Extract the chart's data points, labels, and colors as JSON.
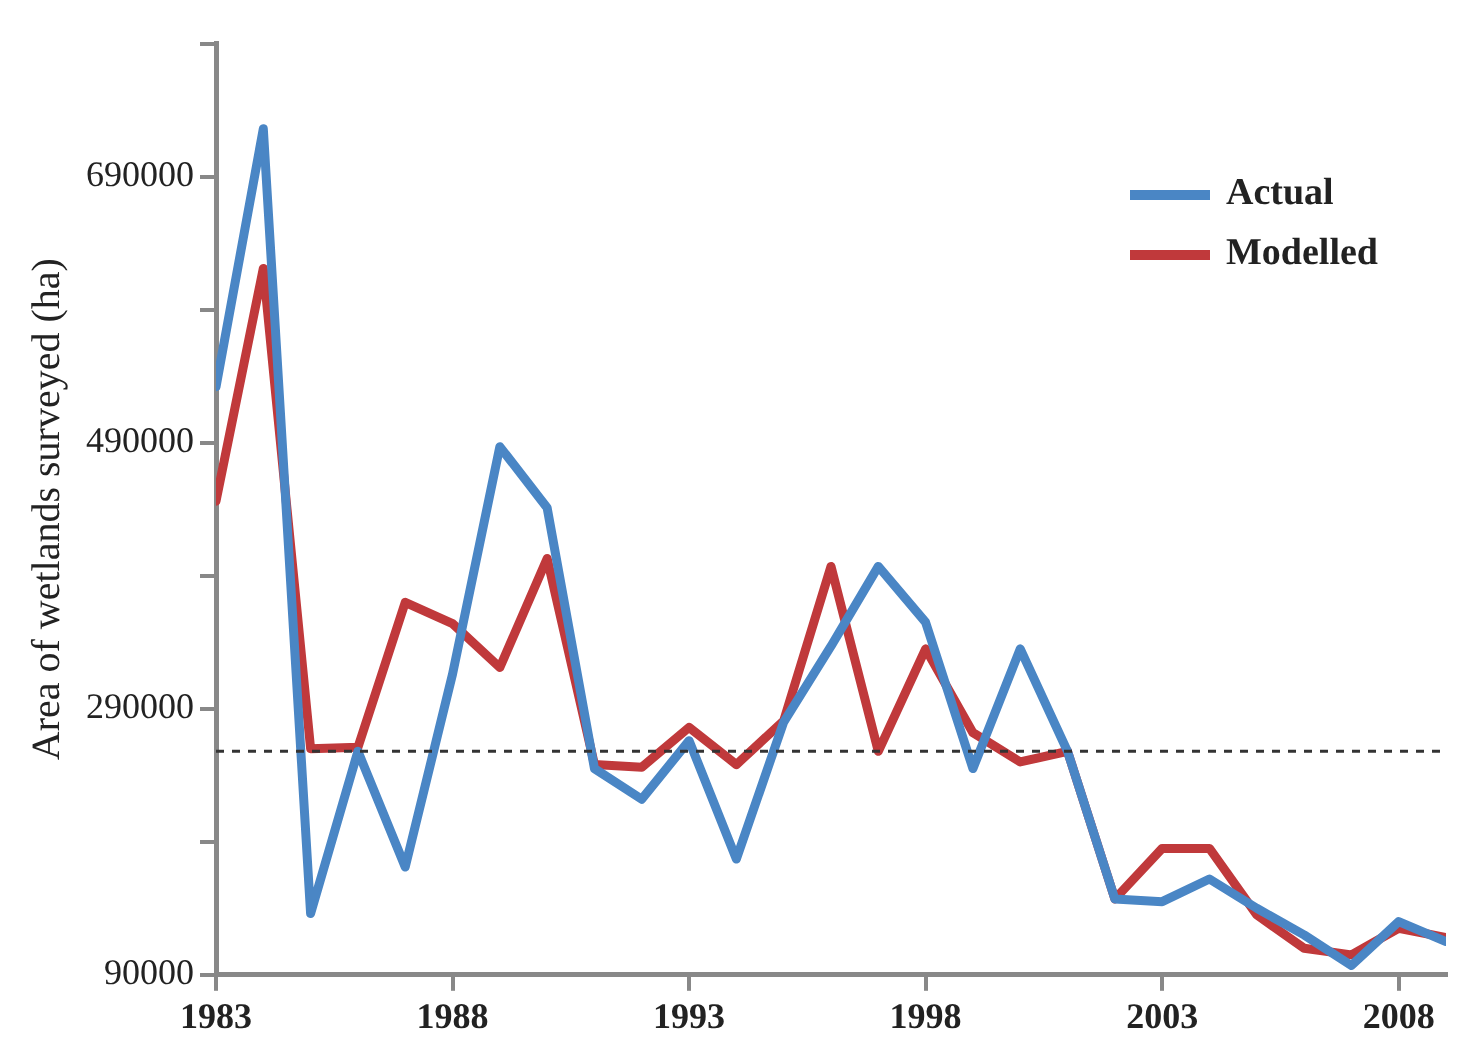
{
  "chart_data": {
    "type": "line",
    "ylabel": "Area of wetlands surveyed (ha)",
    "x": [
      1983,
      1984,
      1985,
      1986,
      1987,
      1988,
      1989,
      1990,
      1991,
      1992,
      1993,
      1994,
      1995,
      1996,
      1997,
      1998,
      1999,
      2000,
      2001,
      2002,
      2003,
      2004,
      2005,
      2006,
      2007,
      2008,
      2009
    ],
    "series": [
      {
        "name": "Actual",
        "color": "#4a86c5",
        "values": [
          532000,
          726000,
          136000,
          258000,
          171000,
          316000,
          487000,
          441000,
          245000,
          222000,
          266000,
          177000,
          280000,
          337000,
          397000,
          355000,
          245000,
          335000,
          258000,
          147000,
          145000,
          162000,
          140000,
          120000,
          97000,
          130000,
          115000
        ]
      },
      {
        "name": "Modelled",
        "color": "#c0393b",
        "values": [
          446000,
          621000,
          260000,
          261000,
          370000,
          354000,
          321000,
          403000,
          248000,
          246000,
          276000,
          248000,
          281000,
          397000,
          258000,
          335000,
          272000,
          250000,
          258000,
          147000,
          185000,
          185000,
          135000,
          110000,
          105000,
          125000,
          118000
        ]
      }
    ],
    "xlim": [
      1983,
      2009
    ],
    "xticks": [
      1983,
      1988,
      1993,
      1998,
      2003,
      2008
    ],
    "ylim": [
      90000,
      790000
    ],
    "yticks": [
      90000,
      {
        "value": 190000,
        "label": null
      },
      290000,
      {
        "value": 390000,
        "label": null
      },
      490000,
      {
        "value": 590000,
        "label": null
      },
      690000,
      {
        "value": 790000,
        "label": null
      }
    ],
    "ref_lines": [
      {
        "axis": "y",
        "value": 258000,
        "color": "#333333",
        "line_style": "dashed"
      }
    ],
    "legend": "top right",
    "grid": false,
    "marker": "none",
    "line_style": "solid"
  }
}
